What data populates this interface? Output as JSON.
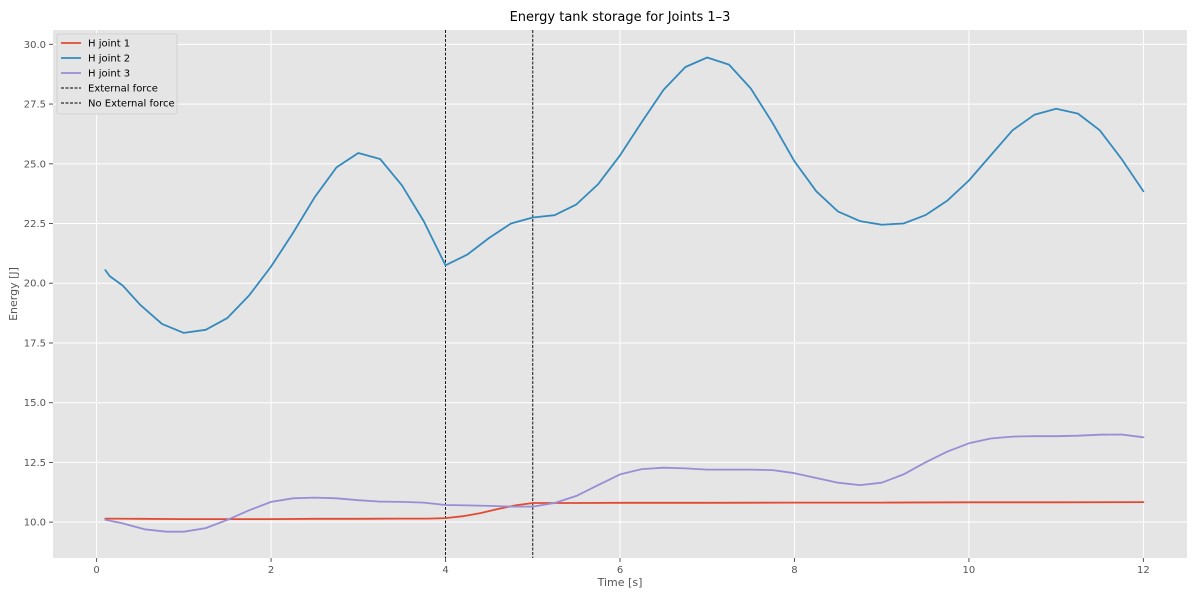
{
  "chart_data": {
    "type": "line",
    "title": "Energy tank storage for Joints 1–3",
    "xlabel": "Time [s]",
    "ylabel": "Energy [J]",
    "xlim": [
      -0.5,
      12.5
    ],
    "ylim": [
      8.5,
      30.6
    ],
    "xticks": [
      0,
      2,
      4,
      6,
      8,
      10,
      12
    ],
    "xtick_labels": [
      "0",
      "2",
      "4",
      "6",
      "8",
      "10",
      "12"
    ],
    "yticks": [
      10.0,
      12.5,
      15.0,
      17.5,
      20.0,
      22.5,
      25.0,
      27.5,
      30.0
    ],
    "ytick_labels": [
      "10.0",
      "12.5",
      "15.0",
      "17.5",
      "20.0",
      "22.5",
      "25.0",
      "27.5",
      "30.0"
    ],
    "grid": true,
    "legend_position": "top-left",
    "series": [
      {
        "name": "H joint 1",
        "color": "#e24a33",
        "points": [
          [
            0.1,
            10.15
          ],
          [
            0.5,
            10.14
          ],
          [
            1.0,
            10.13
          ],
          [
            1.5,
            10.13
          ],
          [
            2.0,
            10.13
          ],
          [
            2.5,
            10.14
          ],
          [
            3.0,
            10.14
          ],
          [
            3.5,
            10.15
          ],
          [
            3.8,
            10.15
          ],
          [
            4.0,
            10.17
          ],
          [
            4.2,
            10.25
          ],
          [
            4.4,
            10.38
          ],
          [
            4.6,
            10.55
          ],
          [
            4.8,
            10.7
          ],
          [
            5.0,
            10.8
          ],
          [
            5.5,
            10.8
          ],
          [
            6.0,
            10.81
          ],
          [
            7.0,
            10.81
          ],
          [
            8.0,
            10.82
          ],
          [
            9.0,
            10.82
          ],
          [
            10.0,
            10.83
          ],
          [
            11.0,
            10.83
          ],
          [
            12.0,
            10.84
          ]
        ]
      },
      {
        "name": "H joint 2",
        "color": "#348abd",
        "points": [
          [
            0.1,
            20.55
          ],
          [
            0.15,
            20.3
          ],
          [
            0.3,
            19.9
          ],
          [
            0.5,
            19.1
          ],
          [
            0.75,
            18.3
          ],
          [
            1.0,
            17.92
          ],
          [
            1.25,
            18.05
          ],
          [
            1.5,
            18.55
          ],
          [
            1.75,
            19.5
          ],
          [
            2.0,
            20.7
          ],
          [
            2.25,
            22.1
          ],
          [
            2.5,
            23.6
          ],
          [
            2.75,
            24.85
          ],
          [
            3.0,
            25.45
          ],
          [
            3.25,
            25.2
          ],
          [
            3.5,
            24.1
          ],
          [
            3.75,
            22.6
          ],
          [
            4.0,
            20.75
          ],
          [
            4.25,
            21.2
          ],
          [
            4.5,
            21.9
          ],
          [
            4.75,
            22.5
          ],
          [
            5.0,
            22.75
          ],
          [
            5.25,
            22.85
          ],
          [
            5.5,
            23.3
          ],
          [
            5.75,
            24.15
          ],
          [
            6.0,
            25.35
          ],
          [
            6.25,
            26.75
          ],
          [
            6.5,
            28.1
          ],
          [
            6.75,
            29.05
          ],
          [
            7.0,
            29.45
          ],
          [
            7.25,
            29.15
          ],
          [
            7.5,
            28.15
          ],
          [
            7.75,
            26.7
          ],
          [
            8.0,
            25.1
          ],
          [
            8.25,
            23.85
          ],
          [
            8.5,
            23.0
          ],
          [
            8.75,
            22.6
          ],
          [
            9.0,
            22.45
          ],
          [
            9.25,
            22.5
          ],
          [
            9.5,
            22.85
          ],
          [
            9.75,
            23.45
          ],
          [
            10.0,
            24.3
          ],
          [
            10.25,
            25.35
          ],
          [
            10.5,
            26.4
          ],
          [
            10.75,
            27.05
          ],
          [
            11.0,
            27.3
          ],
          [
            11.25,
            27.1
          ],
          [
            11.5,
            26.4
          ],
          [
            11.75,
            25.2
          ],
          [
            12.0,
            23.85
          ]
        ]
      },
      {
        "name": "H joint 3",
        "color": "#988ed5",
        "points": [
          [
            0.1,
            10.1
          ],
          [
            0.3,
            9.95
          ],
          [
            0.55,
            9.7
          ],
          [
            0.8,
            9.6
          ],
          [
            1.0,
            9.6
          ],
          [
            1.25,
            9.75
          ],
          [
            1.5,
            10.1
          ],
          [
            1.75,
            10.5
          ],
          [
            2.0,
            10.85
          ],
          [
            2.25,
            11.0
          ],
          [
            2.5,
            11.03
          ],
          [
            2.75,
            11.0
          ],
          [
            3.0,
            10.92
          ],
          [
            3.25,
            10.86
          ],
          [
            3.5,
            10.85
          ],
          [
            3.75,
            10.82
          ],
          [
            4.0,
            10.72
          ],
          [
            4.25,
            10.7
          ],
          [
            4.5,
            10.68
          ],
          [
            4.75,
            10.65
          ],
          [
            5.0,
            10.65
          ],
          [
            5.25,
            10.8
          ],
          [
            5.5,
            11.1
          ],
          [
            5.75,
            11.55
          ],
          [
            6.0,
            12.0
          ],
          [
            6.25,
            12.22
          ],
          [
            6.5,
            12.28
          ],
          [
            6.75,
            12.25
          ],
          [
            7.0,
            12.2
          ],
          [
            7.25,
            12.2
          ],
          [
            7.5,
            12.2
          ],
          [
            7.75,
            12.18
          ],
          [
            8.0,
            12.05
          ],
          [
            8.25,
            11.85
          ],
          [
            8.5,
            11.65
          ],
          [
            8.75,
            11.55
          ],
          [
            9.0,
            11.65
          ],
          [
            9.25,
            12.0
          ],
          [
            9.5,
            12.5
          ],
          [
            9.75,
            12.95
          ],
          [
            10.0,
            13.3
          ],
          [
            10.25,
            13.5
          ],
          [
            10.5,
            13.58
          ],
          [
            10.75,
            13.6
          ],
          [
            11.0,
            13.6
          ],
          [
            11.25,
            13.62
          ],
          [
            11.5,
            13.66
          ],
          [
            11.75,
            13.67
          ],
          [
            12.0,
            13.55
          ]
        ]
      }
    ],
    "vlines": [
      {
        "name": "External force",
        "x": 4.0,
        "color": "#000000",
        "style": "dashed"
      },
      {
        "name": "No External force",
        "x": 5.0,
        "color": "#000000",
        "style": "dashed"
      }
    ]
  }
}
